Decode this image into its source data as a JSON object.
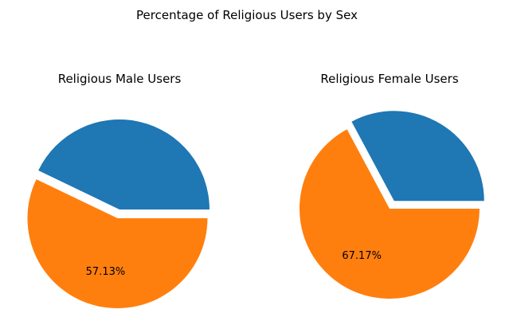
{
  "figure": {
    "suptitle": "Percentage of Religious Users by Sex"
  },
  "colors": {
    "blue": "#1f77b4",
    "orange": "#ff7f0e"
  },
  "chart_data": [
    {
      "type": "pie",
      "title": "Religious Male Users",
      "slices": [
        {
          "label": "",
          "value": 42.87,
          "color": "#1f77b4",
          "explode": 0.0,
          "autopct": ""
        },
        {
          "label": "",
          "value": 57.13,
          "color": "#ff7f0e",
          "explode": 0.1,
          "autopct": "57.13%"
        }
      ]
    },
    {
      "type": "pie",
      "title": "Religious Female Users",
      "slices": [
        {
          "label": "",
          "value": 32.83,
          "color": "#1f77b4",
          "explode": 0.1,
          "autopct": ""
        },
        {
          "label": "",
          "value": 67.17,
          "color": "#ff7f0e",
          "explode": 0.0,
          "autopct": "67.17%"
        }
      ]
    }
  ]
}
